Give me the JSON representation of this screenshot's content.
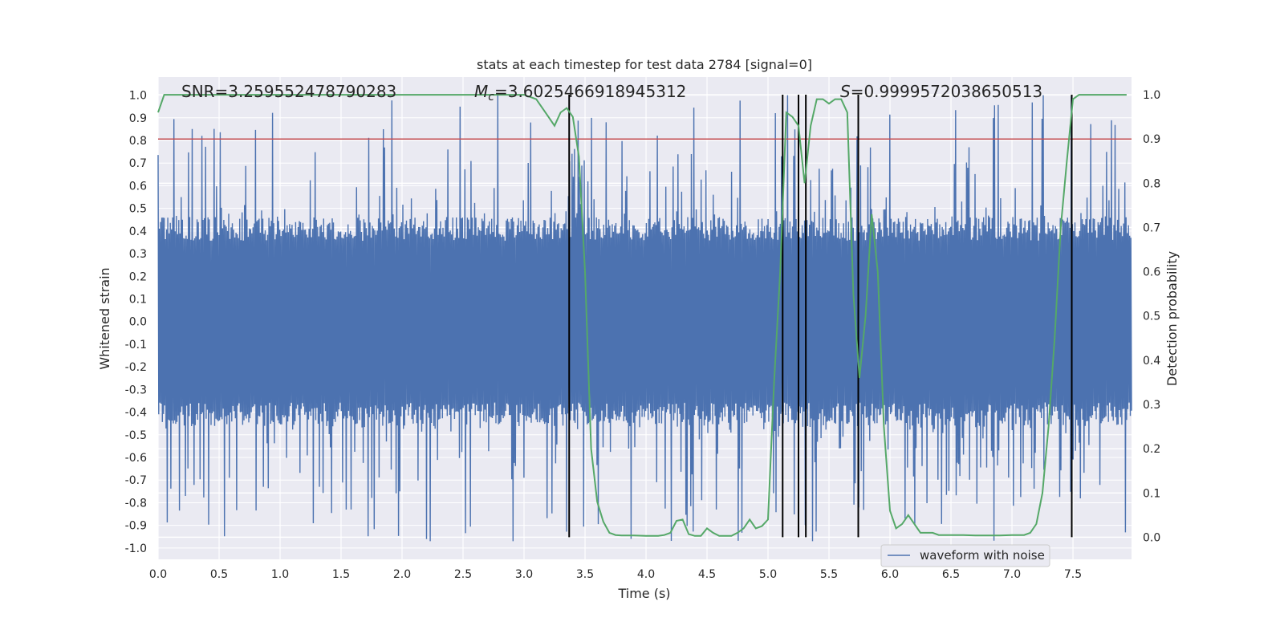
{
  "chart_data": {
    "type": "line",
    "title": "stats at each timestep for test data 2784 [signal=0]",
    "xlabel": "Time (s)",
    "ylabel": "Whitened strain",
    "ylabel_right": "Detection probability",
    "xlim": [
      0.0,
      7.98
    ],
    "ylim": [
      -1.05,
      1.08
    ],
    "ylim_right": [
      -0.05,
      1.04
    ],
    "x_ticks": [
      "0.0",
      "0.5",
      "1.0",
      "1.5",
      "2.0",
      "2.5",
      "3.0",
      "3.5",
      "4.0",
      "4.5",
      "5.0",
      "5.5",
      "6.0",
      "6.5",
      "7.0",
      "7.5"
    ],
    "y_ticks": [
      "1.0",
      "0.9",
      "0.8",
      "0.7",
      "0.6",
      "0.5",
      "0.4",
      "0.3",
      "0.2",
      "0.1",
      "0.0",
      "-0.1",
      "-0.2",
      "-0.3",
      "-0.4",
      "-0.5",
      "-0.6",
      "-0.7",
      "-0.8",
      "-0.9",
      "-1.0"
    ],
    "y_ticks_right": [
      "1.0",
      "0.9",
      "0.8",
      "0.7",
      "0.6",
      "0.5",
      "0.4",
      "0.3",
      "0.2",
      "0.1",
      "0.0"
    ],
    "grid": true,
    "legend": {
      "position": "bottom-right",
      "entries": [
        "waveform with noise"
      ]
    },
    "annotations": {
      "snr": "SNR=3.259552478790283",
      "mc_symbol": "M",
      "mc_sub": "c",
      "mc_value": "=3.6025466918945312",
      "s_symbol": "S",
      "s_value": "=0.9999572038650513"
    },
    "threshold": {
      "value": 0.9,
      "axis": "right",
      "color": "#c44e52"
    },
    "vertical_lines_x": [
      3.37,
      5.12,
      5.25,
      5.31,
      5.74,
      7.49
    ],
    "vertical_line_range_right": [
      0.0,
      1.0
    ],
    "waveform": {
      "name": "waveform with noise",
      "color": "#4c72b0",
      "samples": 1600,
      "base_amplitude": 0.42,
      "spike_max": 1.0
    },
    "probability": {
      "color": "#55a868",
      "x": [
        0.0,
        0.05,
        0.1,
        0.5,
        1.0,
        1.5,
        2.0,
        2.5,
        3.0,
        3.05,
        3.1,
        3.15,
        3.2,
        3.25,
        3.3,
        3.35,
        3.4,
        3.45,
        3.5,
        3.55,
        3.6,
        3.65,
        3.7,
        3.75,
        3.8,
        3.9,
        4.0,
        4.1,
        4.15,
        4.2,
        4.25,
        4.3,
        4.35,
        4.4,
        4.45,
        4.5,
        4.55,
        4.6,
        4.65,
        4.7,
        4.75,
        4.8,
        4.85,
        4.9,
        4.95,
        5.0,
        5.05,
        5.1,
        5.15,
        5.2,
        5.25,
        5.3,
        5.35,
        5.4,
        5.45,
        5.5,
        5.55,
        5.6,
        5.65,
        5.7,
        5.75,
        5.8,
        5.85,
        5.9,
        5.95,
        6.0,
        6.05,
        6.1,
        6.15,
        6.2,
        6.25,
        6.3,
        6.35,
        6.4,
        6.45,
        6.5,
        6.6,
        6.7,
        6.8,
        6.9,
        7.0,
        7.1,
        7.15,
        7.2,
        7.25,
        7.3,
        7.35,
        7.4,
        7.45,
        7.5,
        7.55,
        7.6,
        7.65,
        7.7,
        7.75,
        7.8,
        7.85,
        7.9,
        7.94
      ],
      "y": [
        0.96,
        1.0,
        1.0,
        1.0,
        1.0,
        1.0,
        1.0,
        1.0,
        1.0,
        0.995,
        0.99,
        0.97,
        0.95,
        0.93,
        0.96,
        0.97,
        0.95,
        0.86,
        0.6,
        0.2,
        0.08,
        0.035,
        0.01,
        0.005,
        0.004,
        0.004,
        0.003,
        0.003,
        0.005,
        0.01,
        0.037,
        0.04,
        0.007,
        0.003,
        0.003,
        0.02,
        0.01,
        0.003,
        0.003,
        0.003,
        0.01,
        0.02,
        0.04,
        0.02,
        0.025,
        0.04,
        0.35,
        0.6,
        0.96,
        0.95,
        0.93,
        0.8,
        0.93,
        0.99,
        0.99,
        0.98,
        0.99,
        0.99,
        0.96,
        0.55,
        0.36,
        0.5,
        0.73,
        0.6,
        0.25,
        0.06,
        0.02,
        0.03,
        0.05,
        0.03,
        0.01,
        0.01,
        0.01,
        0.005,
        0.005,
        0.005,
        0.005,
        0.004,
        0.004,
        0.004,
        0.005,
        0.005,
        0.01,
        0.03,
        0.1,
        0.25,
        0.45,
        0.7,
        0.85,
        0.99,
        1.0,
        1.0,
        1.0,
        1.0,
        1.0,
        1.0,
        1.0,
        1.0,
        1.0
      ]
    }
  }
}
